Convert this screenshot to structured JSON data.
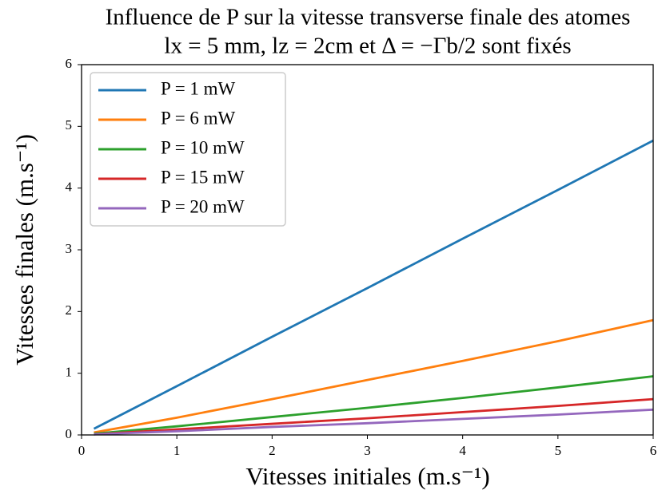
{
  "chart_data": {
    "type": "line",
    "title": "Influence de P sur la vitesse transverse finale des atomes",
    "subtitle": "lx = 5 mm, lz = 2cm et Δ = −Γb/2 sont fixés",
    "x_label": "Vitesses initiales (m.s⁻¹)",
    "y_label": "Vitesses finales (m.s⁻¹)",
    "x": [
      0.13,
      1,
      2,
      3,
      4,
      5,
      6
    ],
    "series": [
      {
        "name": "P = 1 mW",
        "color": "#1f77b4",
        "values": [
          0.1,
          0.79,
          1.59,
          2.38,
          3.18,
          3.97,
          4.77
        ]
      },
      {
        "name": "P = 6 mW",
        "color": "#ff7f0e",
        "values": [
          0.04,
          0.28,
          0.58,
          0.89,
          1.2,
          1.52,
          1.86
        ]
      },
      {
        "name": "P = 10 mW",
        "color": "#2ca02c",
        "values": [
          0.02,
          0.14,
          0.29,
          0.44,
          0.6,
          0.77,
          0.95
        ]
      },
      {
        "name": "P = 15 mW",
        "color": "#d62728",
        "values": [
          0.01,
          0.09,
          0.18,
          0.27,
          0.37,
          0.47,
          0.58
        ]
      },
      {
        "name": "P = 20 mW",
        "color": "#9467bd",
        "values": [
          0.01,
          0.06,
          0.13,
          0.19,
          0.26,
          0.33,
          0.41
        ]
      }
    ],
    "xlim": [
      0,
      6
    ],
    "ylim": [
      0,
      6
    ],
    "xticks": [
      0,
      1,
      2,
      3,
      4,
      5,
      6
    ],
    "yticks": [
      0,
      1,
      2,
      3,
      4,
      5,
      6
    ],
    "grid": false,
    "legend": "upper left"
  }
}
